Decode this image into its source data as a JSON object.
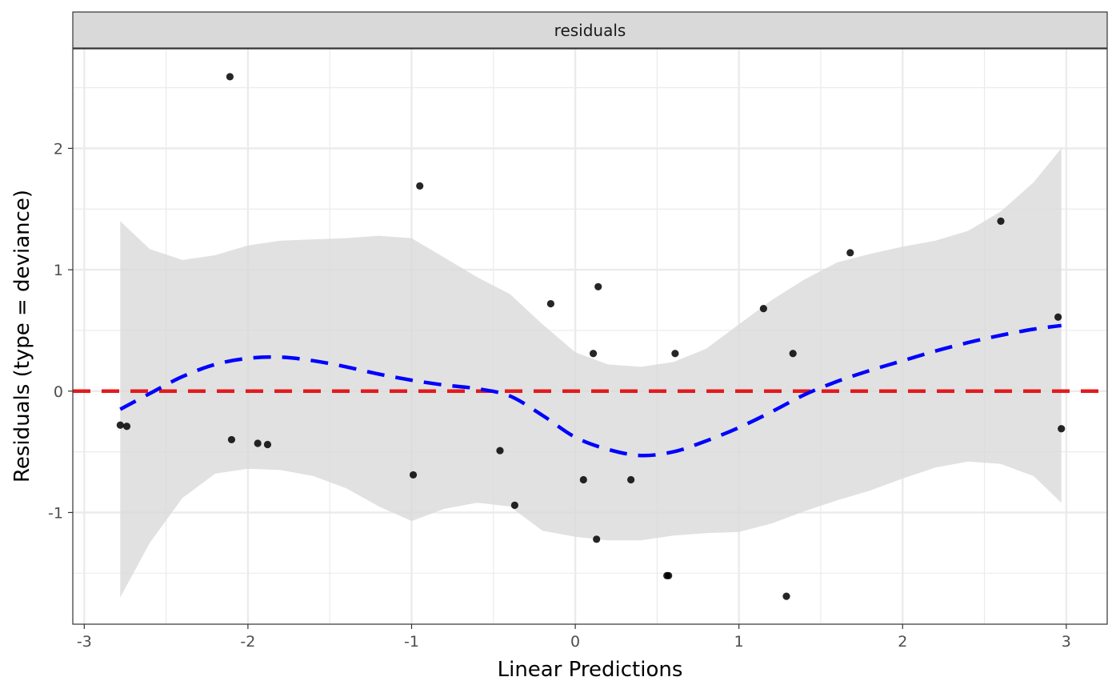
{
  "chart_data": {
    "type": "scatter",
    "facet_label": "residuals",
    "xlabel": "Linear Predictions",
    "ylabel": "Residuals (type = deviance)",
    "xlim": [
      -3.07,
      3.25
    ],
    "ylim": [
      -1.92,
      2.82
    ],
    "x_ticks": [
      -3,
      -2,
      -1,
      0,
      1,
      2,
      3
    ],
    "x_tick_labels": [
      "-3",
      "-2",
      "-1",
      "0",
      "1",
      "2",
      "3"
    ],
    "y_ticks": [
      -1,
      0,
      1,
      2
    ],
    "y_tick_labels": [
      "-1",
      "0",
      "1",
      "2"
    ],
    "grid": true,
    "colors": {
      "points": "#000000",
      "smooth_line": "#0000ff",
      "reference_line": "#e31a1c",
      "ribbon": "#d9d9d9",
      "strip_fill": "#d9d9d9",
      "panel_border": "#333333",
      "grid": "#ebebeb"
    },
    "series": [
      {
        "role": "points",
        "x": [
          -2.78,
          -2.74,
          -2.11,
          -2.1,
          -1.94,
          -1.88,
          -0.99,
          -0.95,
          -0.46,
          -0.37,
          -0.15,
          0.05,
          0.11,
          0.13,
          0.14,
          0.34,
          0.56,
          0.57,
          0.61,
          1.15,
          1.29,
          1.33,
          1.68,
          2.6,
          2.95,
          2.97
        ],
        "y": [
          -0.28,
          -0.29,
          2.59,
          -0.4,
          -0.43,
          -0.44,
          -0.69,
          1.69,
          -0.49,
          -0.94,
          0.72,
          -0.73,
          0.31,
          -1.22,
          0.86,
          -0.73,
          -1.52,
          -1.52,
          0.31,
          0.68,
          -1.69,
          0.31,
          1.14,
          1.4,
          0.61,
          -0.31
        ]
      },
      {
        "role": "smooth",
        "style": "dashed",
        "x": [
          -2.78,
          -2.6,
          -2.4,
          -2.2,
          -2.0,
          -1.8,
          -1.6,
          -1.4,
          -1.2,
          -1.0,
          -0.8,
          -0.6,
          -0.4,
          -0.2,
          0.0,
          0.2,
          0.4,
          0.6,
          0.8,
          1.0,
          1.2,
          1.4,
          1.6,
          1.8,
          2.0,
          2.2,
          2.4,
          2.6,
          2.8,
          2.97
        ],
        "y": [
          -0.15,
          -0.02,
          0.12,
          0.22,
          0.27,
          0.28,
          0.25,
          0.2,
          0.14,
          0.09,
          0.05,
          0.02,
          -0.04,
          -0.2,
          -0.38,
          -0.48,
          -0.53,
          -0.5,
          -0.41,
          -0.3,
          -0.17,
          -0.03,
          0.08,
          0.17,
          0.25,
          0.33,
          0.4,
          0.46,
          0.51,
          0.54
        ]
      },
      {
        "role": "ribbon",
        "x": [
          -2.78,
          -2.6,
          -2.4,
          -2.2,
          -2.0,
          -1.8,
          -1.6,
          -1.4,
          -1.2,
          -1.0,
          -0.8,
          -0.6,
          -0.4,
          -0.2,
          0.0,
          0.2,
          0.4,
          0.6,
          0.8,
          1.0,
          1.2,
          1.4,
          1.6,
          1.8,
          2.0,
          2.2,
          2.4,
          2.6,
          2.8,
          2.97
        ],
        "upper": [
          1.4,
          1.17,
          1.08,
          1.12,
          1.2,
          1.24,
          1.25,
          1.26,
          1.28,
          1.26,
          1.1,
          0.94,
          0.8,
          0.55,
          0.32,
          0.22,
          0.2,
          0.24,
          0.35,
          0.55,
          0.75,
          0.92,
          1.06,
          1.13,
          1.19,
          1.24,
          1.32,
          1.48,
          1.72,
          2.0
        ],
        "lower": [
          -1.7,
          -1.25,
          -0.88,
          -0.68,
          -0.64,
          -0.65,
          -0.7,
          -0.8,
          -0.95,
          -1.07,
          -0.97,
          -0.92,
          -0.95,
          -1.15,
          -1.2,
          -1.23,
          -1.23,
          -1.19,
          -1.17,
          -1.16,
          -1.09,
          -0.99,
          -0.9,
          -0.82,
          -0.72,
          -0.63,
          -0.58,
          -0.6,
          -0.7,
          -0.92
        ]
      },
      {
        "role": "reference",
        "style": "dashed",
        "y": 0
      }
    ]
  }
}
